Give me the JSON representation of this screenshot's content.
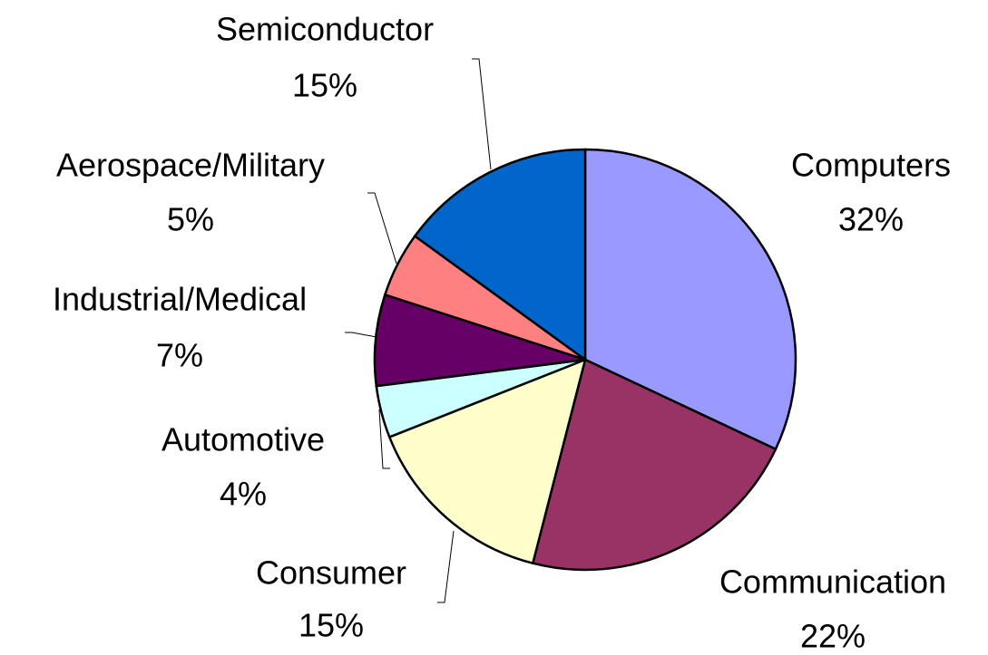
{
  "chart_data": {
    "type": "pie",
    "categories": [
      "Computers",
      "Communication",
      "Consumer",
      "Automotive",
      "Industrial/Medical",
      "Aerospace/Military",
      "Semiconductor"
    ],
    "values": [
      32,
      22,
      15,
      4,
      7,
      5,
      15
    ],
    "value_labels": [
      "32%",
      "22%",
      "15%",
      "4%",
      "7%",
      "5%",
      "15%"
    ],
    "colors": [
      "#9999ff",
      "#993366",
      "#ffffcc",
      "#ccffff",
      "#660066",
      "#ff8080",
      "#0066cc"
    ]
  }
}
